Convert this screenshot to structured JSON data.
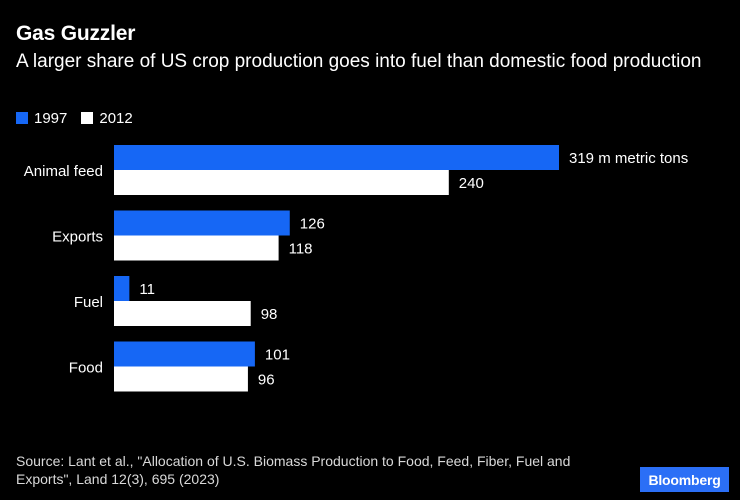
{
  "chart_data": {
    "type": "bar",
    "orientation": "horizontal",
    "title": "Gas Guzzler",
    "subtitle": "A larger share of US crop production goes into fuel than domestic food production",
    "categories": [
      "Animal feed",
      "Exports",
      "Fuel",
      "Food"
    ],
    "series": [
      {
        "name": "1997",
        "values": [
          319,
          126,
          11,
          101
        ],
        "color": "#1667f5"
      },
      {
        "name": "2012",
        "values": [
          240,
          118,
          98,
          96
        ],
        "color": "#ffffff"
      }
    ],
    "data_labels": {
      "1997": [
        "319 m metric tons",
        "126",
        "11",
        "101"
      ],
      "2012": [
        "240",
        "118",
        "98",
        "96"
      ]
    },
    "xlim": [
      0,
      319
    ],
    "grid": false,
    "legend_position": "top-left"
  },
  "source": "Source: Lant et al., \"Allocation of U.S. Biomass Production to Food, Feed, Fiber, Fuel and Exports\", Land 12(3), 695 (2023)",
  "logo_text": "Bloomberg",
  "colors": {
    "background": "#000000",
    "series_1997": "#1667f5",
    "series_2012": "#ffffff",
    "logo_bg": "#2b6ff6"
  }
}
